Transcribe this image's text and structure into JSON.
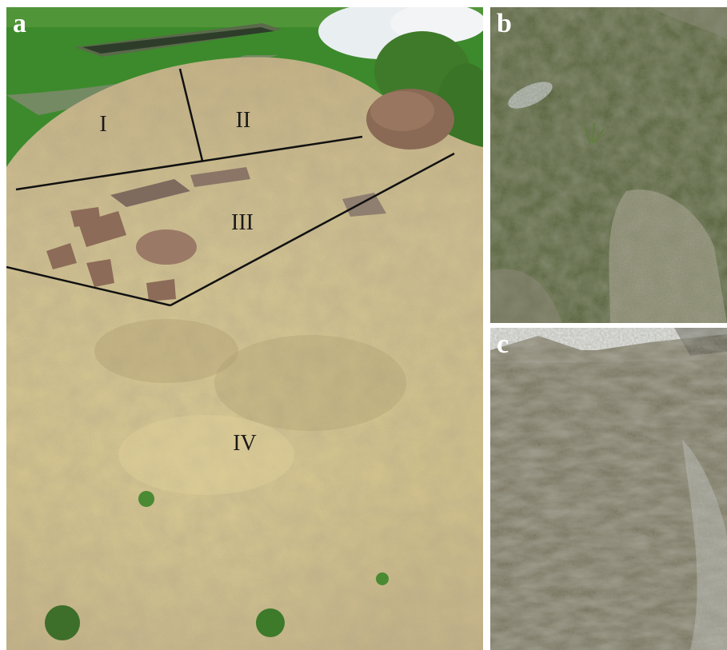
{
  "figure": {
    "panels": [
      {
        "letter": "a",
        "zones": [
          "I",
          "II",
          "III",
          "IV"
        ]
      },
      {
        "letter": "b"
      },
      {
        "letter": "c"
      }
    ],
    "colors": {
      "lawn": "#3f8a2a",
      "sand": "#d9c88e",
      "moss": "#4d5a32",
      "rock": "#8a6a55",
      "divider_lines": "#111111",
      "letters": "#ffffff"
    }
  }
}
